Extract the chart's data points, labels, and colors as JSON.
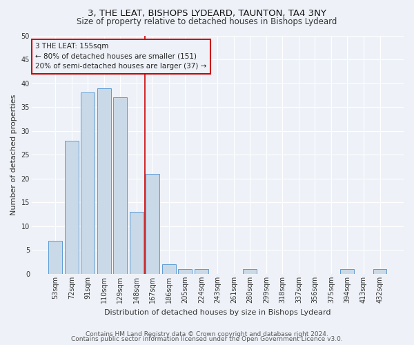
{
  "title": "3, THE LEAT, BISHOPS LYDEARD, TAUNTON, TA4 3NY",
  "subtitle": "Size of property relative to detached houses in Bishops Lydeard",
  "xlabel": "Distribution of detached houses by size in Bishops Lydeard",
  "ylabel": "Number of detached properties",
  "categories": [
    "53sqm",
    "72sqm",
    "91sqm",
    "110sqm",
    "129sqm",
    "148sqm",
    "167sqm",
    "186sqm",
    "205sqm",
    "224sqm",
    "243sqm",
    "261sqm",
    "280sqm",
    "299sqm",
    "318sqm",
    "337sqm",
    "356sqm",
    "375sqm",
    "394sqm",
    "413sqm",
    "432sqm"
  ],
  "values": [
    7,
    28,
    38,
    39,
    37,
    13,
    21,
    2,
    1,
    1,
    0,
    0,
    1,
    0,
    0,
    0,
    0,
    0,
    1,
    0,
    1
  ],
  "bar_color": "#c9d9e8",
  "bar_edge_color": "#5b9bd5",
  "vline_x": 5.5,
  "vline_color": "#cc0000",
  "annotation_text": "3 THE LEAT: 155sqm\n← 80% of detached houses are smaller (151)\n20% of semi-detached houses are larger (37) →",
  "annotation_box_color": "#cc0000",
  "ylim": [
    0,
    50
  ],
  "yticks": [
    0,
    5,
    10,
    15,
    20,
    25,
    30,
    35,
    40,
    45,
    50
  ],
  "footer1": "Contains HM Land Registry data © Crown copyright and database right 2024.",
  "footer2": "Contains public sector information licensed under the Open Government Licence v3.0.",
  "bg_color": "#eef2f8",
  "plot_bg_color": "#eef2f8",
  "grid_color": "#ffffff",
  "title_fontsize": 9.5,
  "subtitle_fontsize": 8.5,
  "label_fontsize": 8,
  "tick_fontsize": 7,
  "annotation_fontsize": 7.5,
  "footer_fontsize": 6.5
}
